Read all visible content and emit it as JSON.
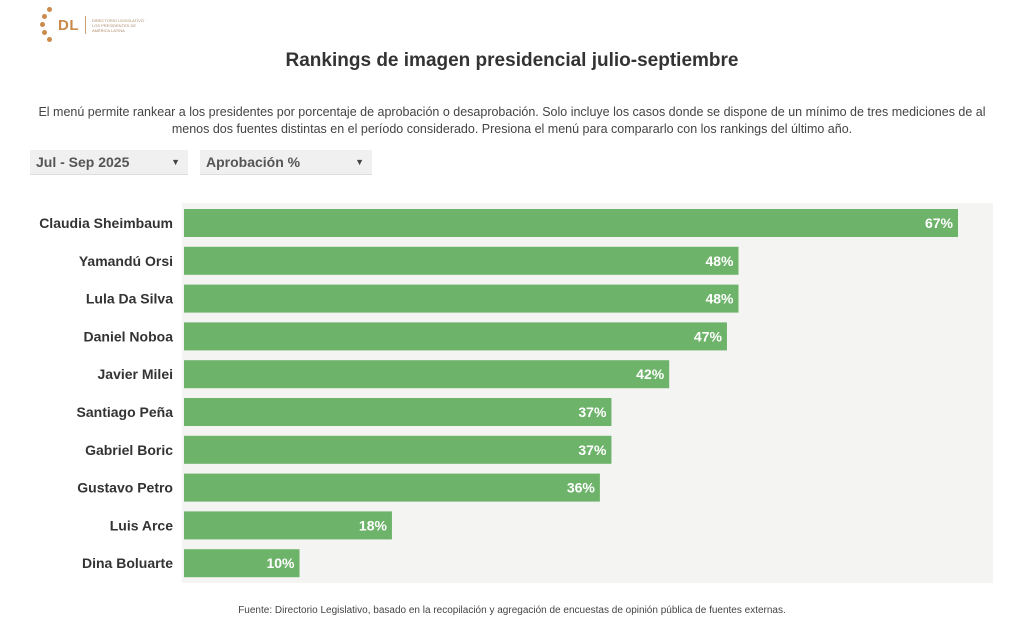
{
  "logo": {
    "text": "DL",
    "subtitle": "Directorio Legislativo · Los presidentes de América Latina"
  },
  "title": "Rankings de imagen presidencial julio-septiembre",
  "description": "El menú permite rankear a los presidentes por porcentaje de aprobación o desaprobación. Solo incluye los casos donde se dispone de un mínimo de tres mediciones de al menos dos fuentes distintas en el período considerado. Presiona el menú para compararlo con los rankings del último año.",
  "filters": {
    "period": "Jul - Sep 2025",
    "metric": "Aprobación %"
  },
  "colors": {
    "bar": "#6db36a",
    "plot_bg": "#f4f4f2",
    "label": "#333333"
  },
  "chart_data": {
    "type": "bar",
    "orientation": "horizontal",
    "title": "Rankings de imagen presidencial julio-septiembre",
    "xlabel": "",
    "ylabel": "",
    "xlim": [
      0,
      70
    ],
    "value_suffix": "%",
    "categories": [
      "Claudia Sheimbaum",
      "Yamandú Orsi",
      "Lula Da Silva",
      "Daniel Noboa",
      "Javier Milei",
      "Santiago Peña",
      "Gabriel Boric",
      "Gustavo Petro",
      "Luis Arce",
      "Dina Boluarte"
    ],
    "values": [
      67,
      48,
      48,
      47,
      42,
      37,
      37,
      36,
      18,
      10
    ]
  },
  "footer": "Fuente: Directorio Legislativo, basado en la recopilación y agregación de encuestas de opinión pública de fuentes externas."
}
